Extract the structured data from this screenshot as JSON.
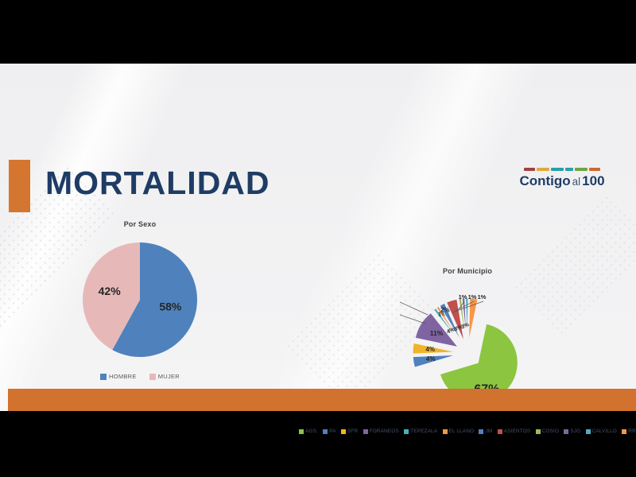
{
  "slide": {
    "title": "MORTALIDAD",
    "accent_color": "#D4762F",
    "footer_color": "#D1722E",
    "logo": {
      "word1": "Contigo",
      "word2": "al",
      "word3": "100",
      "dash_colors": [
        "#A23E42",
        "#E2A93B",
        "#27A0AB",
        "#27A0AB",
        "#6FA53F",
        "#D0662F"
      ]
    }
  },
  "chart_data": [
    {
      "type": "pie",
      "title": "Por Sexo",
      "legend_position": "bottom",
      "slices": [
        {
          "name": "HOMBRE",
          "value": 58,
          "label": "58%",
          "color": "#4F81BD"
        },
        {
          "name": "MUJER",
          "value": 42,
          "label": "42%",
          "color": "#E6B9B8"
        }
      ]
    },
    {
      "type": "pie",
      "title": "Por Municipio",
      "exploded": true,
      "legend_position": "bottom",
      "slices": [
        {
          "name": "AGS.",
          "value": 67,
          "label": "67%",
          "color": "#8CC540"
        },
        {
          "name": "PA",
          "value": 4,
          "label": "4%",
          "color": "#4F81BD"
        },
        {
          "name": "SFR",
          "value": 4,
          "label": "4%",
          "color": "#F0B429"
        },
        {
          "name": "FORANEOS",
          "value": 11,
          "label": "11%",
          "color": "#8064A2"
        },
        {
          "name": "TEPEZALA",
          "value": 1,
          "label": "",
          "color": "#45B1BE"
        },
        {
          "name": "EL LLANO",
          "value": 1,
          "label": "1%",
          "color": "#F79646"
        },
        {
          "name": "JM",
          "value": 2,
          "label": "2%",
          "color": "#4F81BD"
        },
        {
          "name": "ASIENTOS",
          "value": 4,
          "label": "",
          "color": "#C0504D"
        },
        {
          "name": "COSIO",
          "value": 1,
          "label": "",
          "color": "#9BBB59"
        },
        {
          "name": "SJG",
          "value": 1,
          "label": "",
          "color": "#8064A2"
        },
        {
          "name": "CALVILLO",
          "value": 1,
          "label": "",
          "color": "#4BACC6"
        },
        {
          "name": "RR",
          "value": 3,
          "label": "",
          "color": "#F79646"
        }
      ],
      "floating_labels": {
        "top": [
          "1%",
          "1%",
          "1%"
        ],
        "center": [
          "4%",
          "3%",
          "3%"
        ]
      }
    }
  ]
}
